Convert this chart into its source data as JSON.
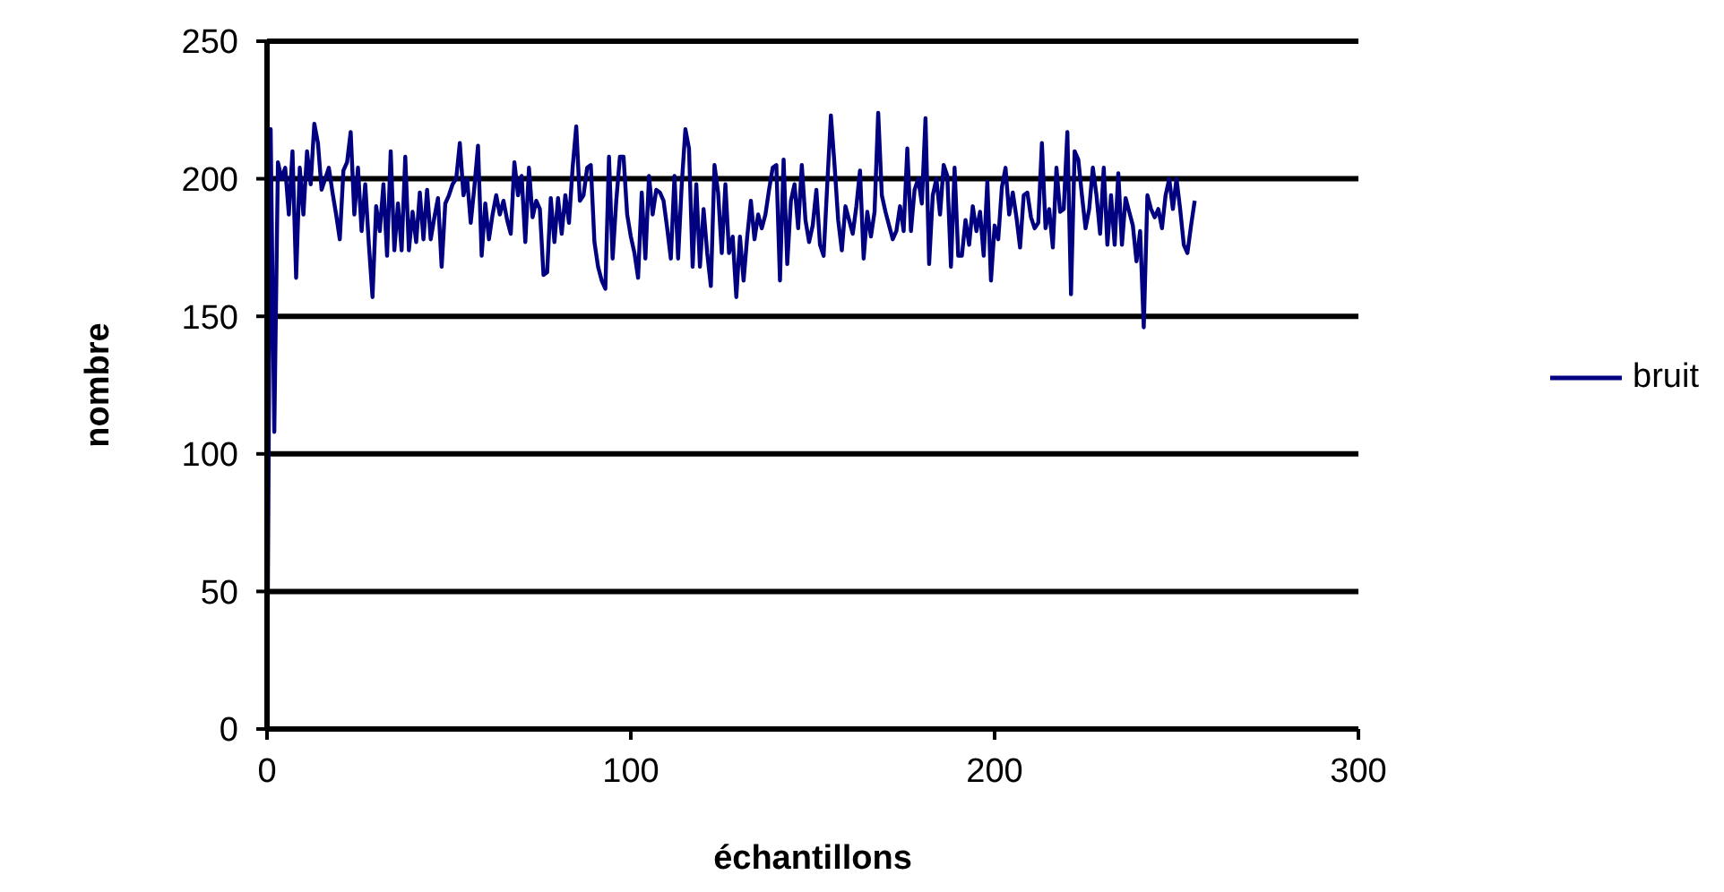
{
  "chart_data": {
    "type": "line",
    "xlabel": "échantillons",
    "ylabel": "nombre",
    "xlim": [
      0,
      300
    ],
    "xticks": [
      0,
      100,
      200,
      300
    ],
    "ylim": [
      0,
      250
    ],
    "yticks": [
      0,
      50,
      100,
      150,
      200,
      250
    ],
    "grid": "y",
    "legend": "right",
    "marker": "none",
    "line_style": "solid",
    "series": [
      {
        "name": "bruit",
        "color": "#000080",
        "x": [
          0,
          1,
          2,
          3,
          4,
          5,
          6,
          7,
          8,
          9,
          10,
          11,
          12,
          13,
          14,
          15,
          16,
          17,
          18,
          19,
          20,
          21,
          22,
          23,
          24,
          25,
          26,
          27,
          28,
          29,
          30,
          31,
          32,
          33,
          34,
          35,
          36,
          37,
          38,
          39,
          40,
          41,
          42,
          43,
          44,
          45,
          46,
          47,
          48,
          49,
          50,
          51,
          52,
          53,
          54,
          55,
          56,
          57,
          58,
          59,
          60,
          61,
          62,
          63,
          64,
          65,
          66,
          67,
          68,
          69,
          70,
          71,
          72,
          73,
          74,
          75,
          76,
          77,
          78,
          79,
          80,
          81,
          82,
          83,
          84,
          85,
          86,
          87,
          88,
          89,
          90,
          91,
          92,
          93,
          94,
          95,
          96,
          97,
          98,
          99,
          100,
          101,
          102,
          103,
          104,
          105,
          106,
          107,
          108,
          109,
          110,
          111,
          112,
          113,
          114,
          115,
          116,
          117,
          118,
          119,
          120,
          121,
          122,
          123,
          124,
          125,
          126,
          127,
          128,
          129,
          130,
          131,
          132,
          133,
          134,
          135,
          136,
          137,
          138,
          139,
          140,
          141,
          142,
          143,
          144,
          145,
          146,
          147,
          148,
          149,
          150,
          151,
          152,
          153,
          154,
          155,
          156,
          157,
          158,
          159,
          160,
          161,
          162,
          163,
          164,
          165,
          166,
          167,
          168,
          169,
          170,
          171,
          172,
          173,
          174,
          175,
          176,
          177,
          178,
          179,
          180,
          181,
          182,
          183,
          184,
          185,
          186,
          187,
          188,
          189,
          190,
          191,
          192,
          193,
          194,
          195,
          196,
          197,
          198,
          199,
          200,
          201,
          202,
          203,
          204,
          205,
          206,
          207,
          208,
          209,
          210,
          211,
          212,
          213,
          214,
          215,
          216,
          217,
          218,
          219,
          220,
          221,
          222,
          223,
          224,
          225,
          226,
          227,
          228,
          229,
          230,
          231,
          232,
          233,
          234,
          235,
          236,
          237,
          238,
          239,
          240,
          241,
          242,
          243,
          244,
          245,
          246,
          247,
          248,
          249,
          250,
          251,
          252,
          253,
          254,
          255
        ],
        "values": [
          0,
          218,
          108,
          206,
          200,
          204,
          187,
          210,
          164,
          204,
          187,
          210,
          198,
          220,
          213,
          196,
          200,
          204,
          195,
          187,
          178,
          203,
          206,
          217,
          187,
          204,
          181,
          198,
          176,
          157,
          190,
          181,
          198,
          172,
          210,
          174,
          191,
          174,
          208,
          174,
          188,
          177,
          195,
          178,
          196,
          178,
          186,
          193,
          168,
          191,
          194,
          198,
          200,
          213,
          194,
          200,
          184,
          197,
          212,
          172,
          191,
          178,
          187,
          194,
          187,
          192,
          185,
          180,
          206,
          194,
          201,
          177,
          204,
          186,
          192,
          189,
          165,
          166,
          193,
          177,
          193,
          180,
          194,
          184,
          204,
          219,
          192,
          194,
          204,
          205,
          177,
          168,
          163,
          160,
          208,
          171,
          192,
          208,
          208,
          187,
          179,
          173,
          164,
          195,
          171,
          201,
          187,
          196,
          195,
          192,
          182,
          171,
          201,
          171,
          198,
          218,
          211,
          168,
          198,
          168,
          189,
          173,
          161,
          205,
          195,
          173,
          198,
          173,
          179,
          157,
          179,
          163,
          179,
          192,
          178,
          187,
          182,
          187,
          196,
          204,
          205,
          163,
          207,
          169,
          192,
          198,
          182,
          205,
          185,
          177,
          183,
          196,
          176,
          172,
          198,
          223,
          205,
          185,
          174,
          190,
          185,
          180,
          190,
          203,
          171,
          188,
          179,
          188,
          224,
          194,
          188,
          183,
          178,
          181,
          190,
          181,
          211,
          181,
          196,
          200,
          191,
          222,
          169,
          194,
          200,
          187,
          205,
          201,
          168,
          204,
          172,
          172,
          185,
          176,
          190,
          181,
          188,
          172,
          199,
          163,
          183,
          178,
          197,
          204,
          187,
          195,
          186,
          175,
          194,
          195,
          186,
          182,
          184,
          213,
          182,
          189,
          175,
          204,
          188,
          189,
          217,
          158,
          210,
          207,
          194,
          182,
          189,
          204,
          194,
          180,
          204,
          176,
          194,
          176,
          202,
          176,
          193,
          188,
          183,
          170,
          181,
          146,
          194,
          189,
          186,
          189,
          182,
          194,
          200,
          189,
          200,
          189,
          176,
          173,
          183,
          192
        ]
      }
    ]
  }
}
